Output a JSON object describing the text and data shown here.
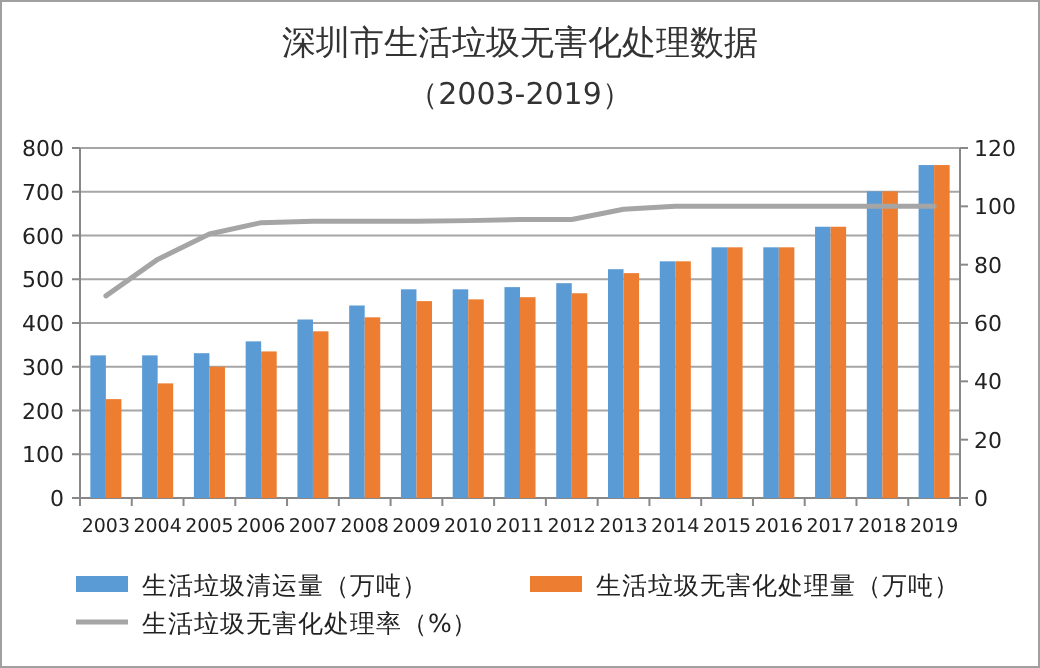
{
  "chart_data": {
    "type": "bar",
    "title": "深圳市生活垃圾无害化处理数据",
    "subtitle": "（2003-2019）",
    "categories": [
      "2003",
      "2004",
      "2005",
      "2006",
      "2007",
      "2008",
      "2009",
      "2010",
      "2011",
      "2012",
      "2013",
      "2014",
      "2015",
      "2016",
      "2017",
      "2018",
      "2019"
    ],
    "series": [
      {
        "name": "生活垃圾清运量（万吨）",
        "color": "#5b9bd5",
        "values": [
          326,
          326,
          331,
          358,
          408,
          440,
          477,
          477,
          482,
          491,
          523,
          541,
          573,
          573,
          620,
          701,
          761
        ]
      },
      {
        "name": "生活垃圾无害化处理量（万吨）",
        "color": "#ed7d31",
        "values": [
          226,
          262,
          300,
          335,
          381,
          413,
          450,
          454,
          459,
          468,
          514,
          541,
          573,
          573,
          620,
          701,
          761
        ]
      },
      {
        "name": "生活垃圾无害化处理率（%）",
        "type": "line",
        "axis": "y2",
        "color": "#a5a5a5",
        "marker": "none",
        "values": [
          69.3,
          81.8,
          90.5,
          94.4,
          94.9,
          94.9,
          94.9,
          95.1,
          95.5,
          95.5,
          99,
          100,
          100,
          100,
          100,
          100,
          100
        ]
      }
    ],
    "ylim": [
      0,
      800
    ],
    "yticks": [
      0,
      100,
      200,
      300,
      400,
      500,
      600,
      700,
      800
    ],
    "y2lim": [
      0,
      120
    ],
    "y2ticks": [
      0,
      20,
      40,
      60,
      80,
      100,
      120
    ],
    "grid": "y",
    "legend": "bottom"
  }
}
